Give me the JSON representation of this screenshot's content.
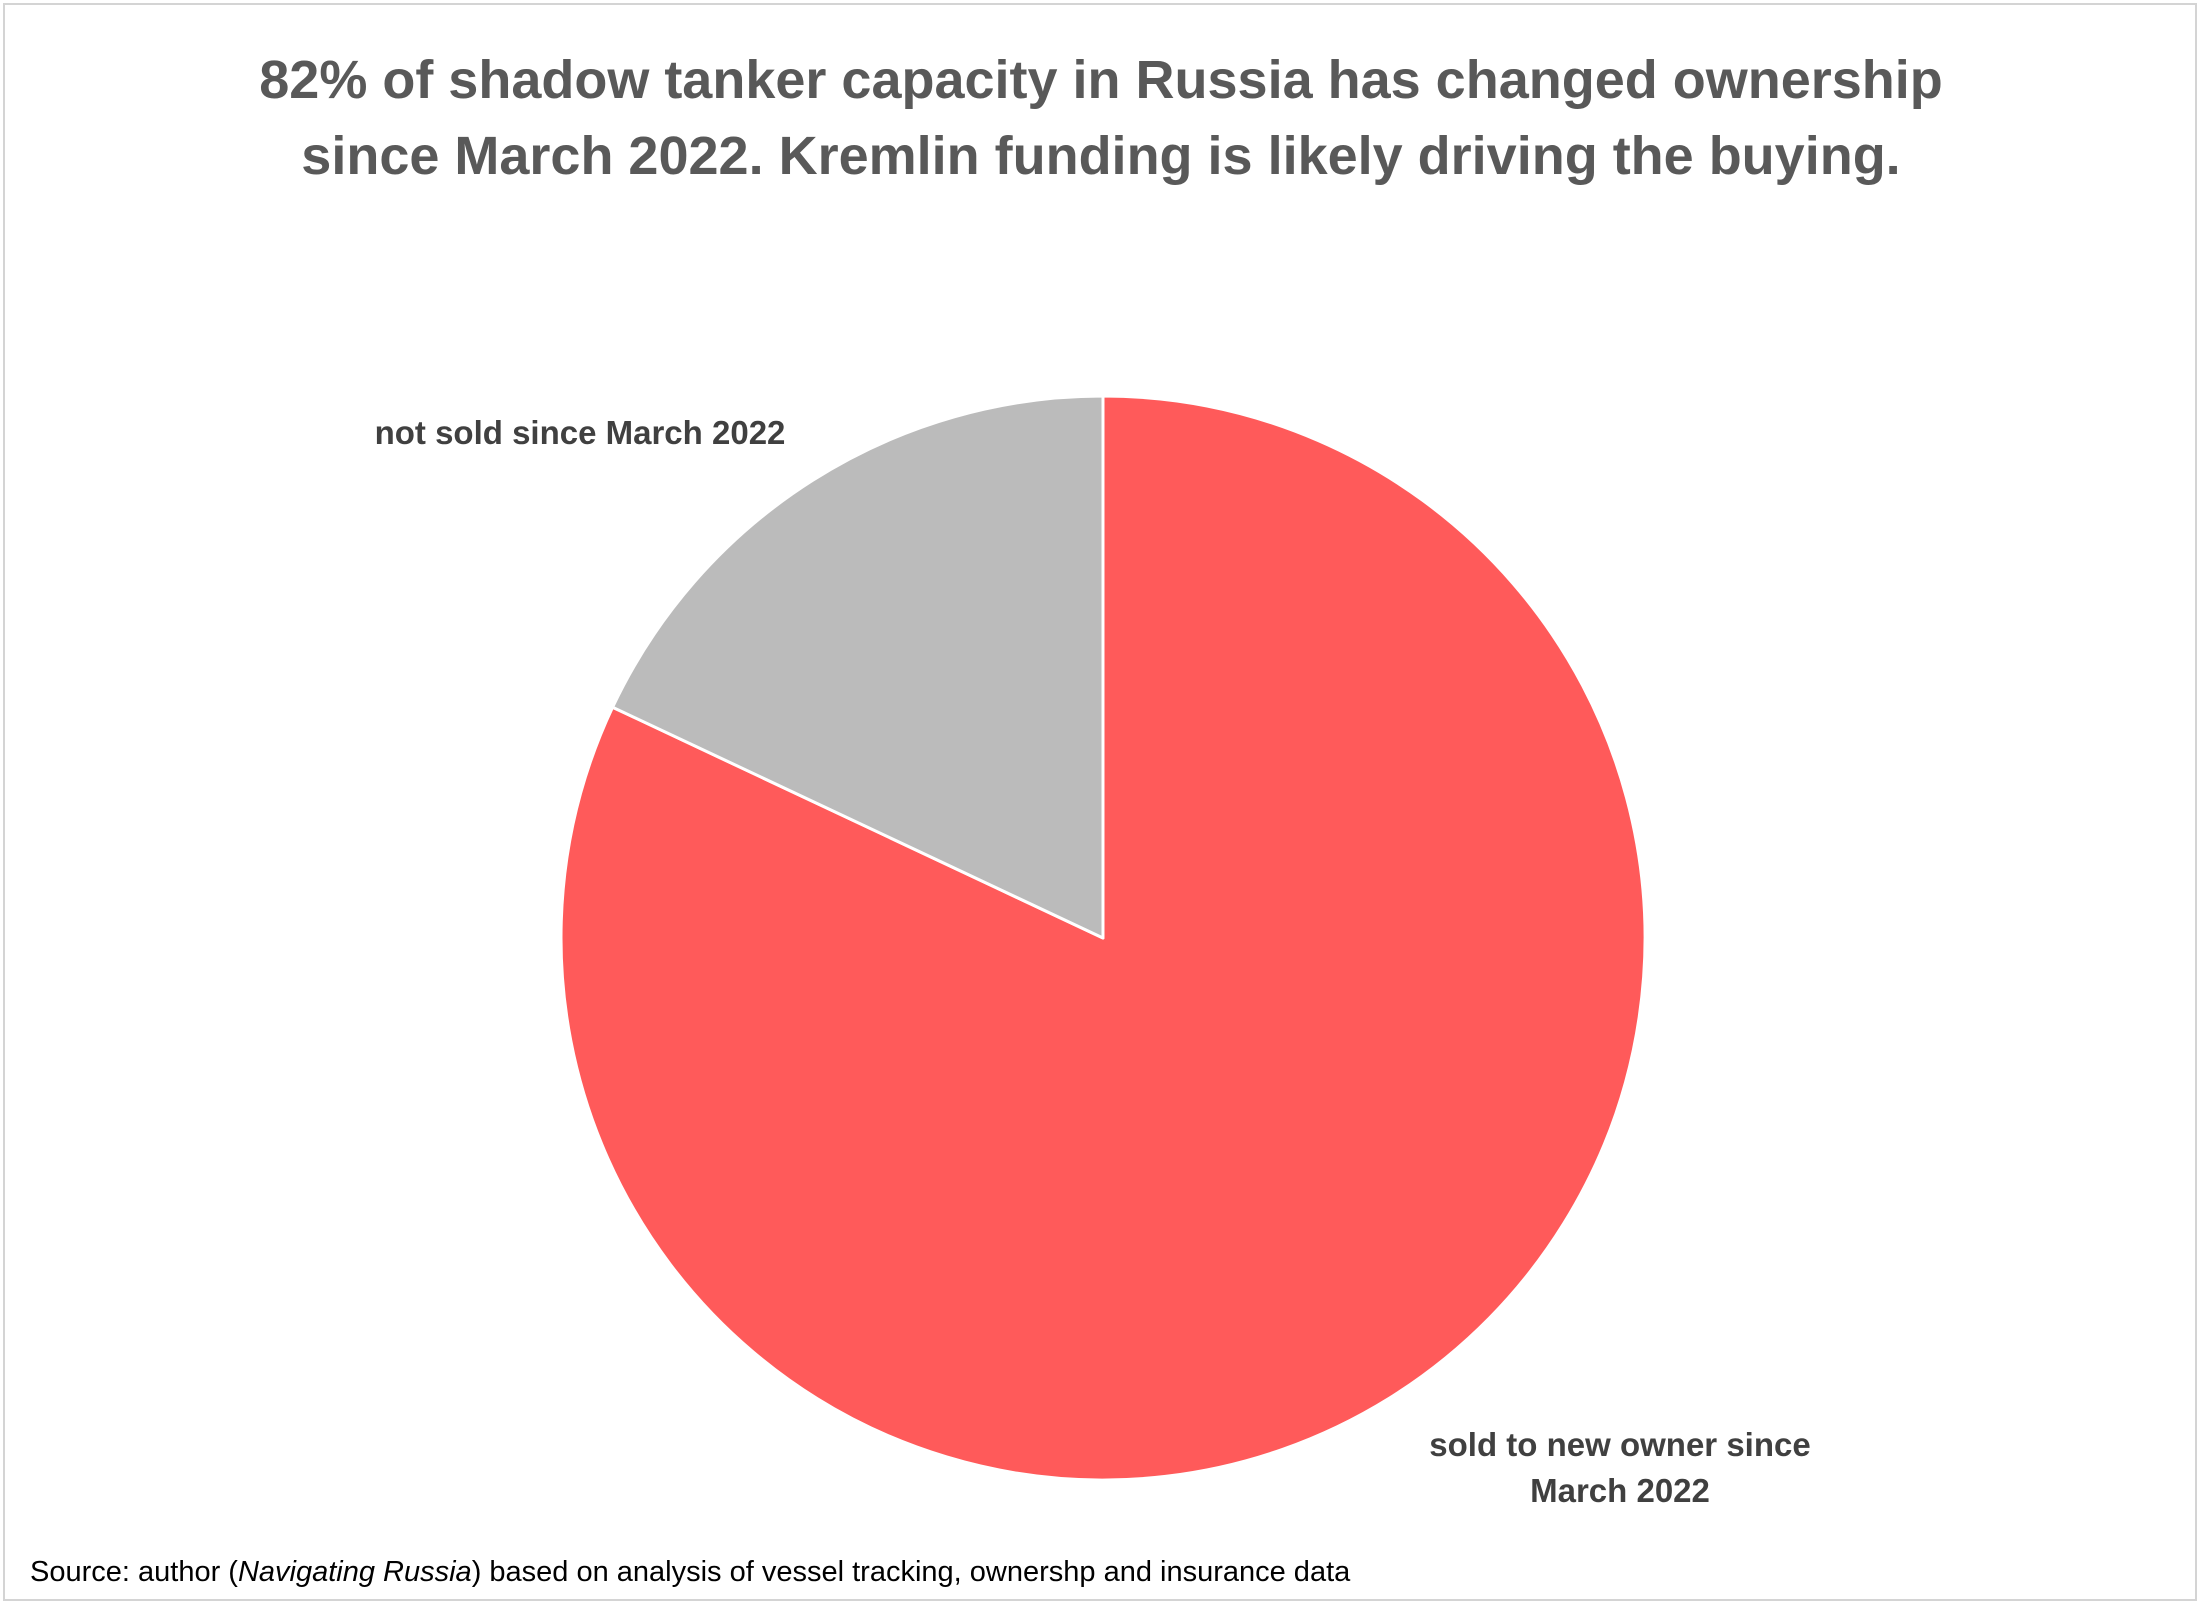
{
  "chart_data": {
    "type": "pie",
    "title": "82% of shadow tanker capacity in Russia has changed ownership since March 2022.  Kremlin funding is likely driving the buying.",
    "title_lines": [
      "82% of shadow tanker capacity in Russia has changed ownership",
      "since March 2022.  Kremlin funding is likely driving the buying."
    ],
    "slices": [
      {
        "label": "sold to new owner since March 2022",
        "label_lines": [
          "sold to new owner since",
          "March 2022"
        ],
        "value": 82,
        "color": "#ff5a5a"
      },
      {
        "label": "not sold since March 2022",
        "label_lines": [
          "not sold since March 2022"
        ],
        "value": 18,
        "color": "#bbbbbb"
      }
    ],
    "start_angle_deg": 0,
    "direction": "clockwise",
    "legend": "none"
  },
  "source": {
    "prefix": "Source: author (",
    "italic": "Navigating Russia",
    "suffix": ") based on analysis of vessel tracking, ownershp and insurance data"
  }
}
